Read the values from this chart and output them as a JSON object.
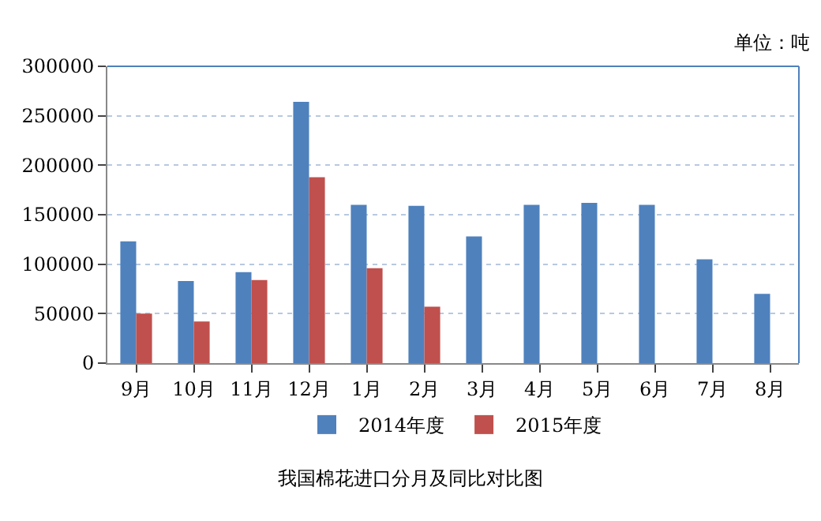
{
  "chart_data": {
    "type": "bar",
    "title": "我国棉花进口分月及同比对比图",
    "annotations": [
      "单位：吨"
    ],
    "categories": [
      "9月",
      "10月",
      "11月",
      "12月",
      "1月",
      "2月",
      "3月",
      "4月",
      "5月",
      "6月",
      "7月",
      "8月"
    ],
    "series": [
      {
        "name": "2014年度",
        "color": "#4f81bd",
        "values": [
          123000,
          83000,
          92000,
          264000,
          160000,
          159000,
          128000,
          160000,
          162000,
          160000,
          105000,
          70000
        ]
      },
      {
        "name": "2015年度",
        "color": "#c0504d",
        "values": [
          50000,
          42000,
          84000,
          188000,
          96000,
          57000,
          null,
          null,
          null,
          null,
          null,
          null
        ]
      }
    ],
    "ylim": [
      0,
      300000
    ],
    "yticks": [
      0,
      50000,
      100000,
      150000,
      200000,
      250000,
      300000
    ],
    "grid": "y",
    "legend": "bottom"
  }
}
